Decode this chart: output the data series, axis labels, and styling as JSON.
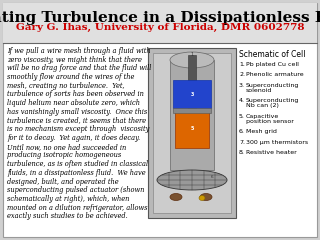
{
  "title": "Creating Turbulence in a Dissipationless Fluid",
  "subtitle": "Gary G. Ihas, University of Florida, DMR 0602778",
  "title_fontsize": 11,
  "subtitle_fontsize": 7.5,
  "title_color": "#000000",
  "subtitle_color": "#cc0000",
  "bg_color": "#d0d0d0",
  "panel_bg": "#ffffff",
  "body_lines": [
    "If we pull a wire mesh through a fluid with",
    "zero viscosity, we might think that there",
    "will be no drag force and that the fluid will",
    "smoothly flow around the wires of the",
    "mesh, creating no turbulence.  Yet,",
    "turbulence of sorts has been observed in",
    "liquid helium near absolute zero, which",
    "has vanishingly small viscosity.  Once this",
    "turbulence is created, it seems that there",
    "is no mechanism except through  viscosity",
    "for it to decay.  Yet again, it does decay.",
    "Until now, no one had succeeded in",
    "producing isotropic homogeneous",
    "turbulence, as is often studied in classical",
    "fluids, in a dissipationless fluid.  We have",
    "designed, built, and operated the",
    "superconducting pulsed actuator (shown",
    "schematically at right), which, when",
    "mounted on a dilution refrigerator, allows",
    "exactly such studies to be achieved."
  ],
  "schematic_label": "Schematic of Cell",
  "legend_items": [
    [
      "Pb plated Cu cell"
    ],
    [
      "Phenolic armature"
    ],
    [
      "Superconducting",
      "solenoid"
    ],
    [
      "Superconducting",
      "Nb can (2)"
    ],
    [
      "Capacitive",
      "position sensor"
    ],
    [
      "Mesh grid"
    ],
    [
      "300 μm thermistors"
    ],
    [
      "Resistive heater"
    ]
  ],
  "body_fontsize": 4.8,
  "legend_fontsize": 4.5,
  "schematic_fontsize": 5.5
}
